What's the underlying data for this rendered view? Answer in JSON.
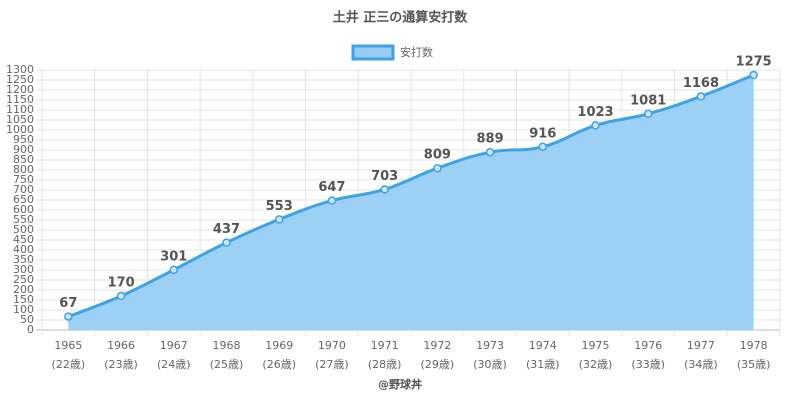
{
  "chart_data": {
    "type": "area",
    "title": "土井 正三の通算安打数",
    "categories": [
      "1965",
      "1966",
      "1967",
      "1968",
      "1969",
      "1970",
      "1971",
      "1972",
      "1973",
      "1974",
      "1975",
      "1976",
      "1977",
      "1978"
    ],
    "category_sublabels": [
      "(22歳)",
      "(23歳)",
      "(24歳)",
      "(25歳)",
      "(26歳)",
      "(27歳)",
      "(28歳)",
      "(29歳)",
      "(30歳)",
      "(31歳)",
      "(32歳)",
      "(33歳)",
      "(34歳)",
      "(35歳)"
    ],
    "series": [
      {
        "name": "安打数",
        "color": "#3ea2e5",
        "fill_color": "#97cdf4",
        "values": [
          67,
          170,
          301,
          437,
          553,
          647,
          703,
          809,
          889,
          916,
          1023,
          1081,
          1168,
          1275
        ]
      }
    ],
    "ylim": [
      0,
      1300
    ],
    "yticks": [
      0,
      50,
      100,
      150,
      200,
      250,
      300,
      350,
      400,
      450,
      500,
      550,
      600,
      650,
      700,
      750,
      800,
      850,
      900,
      950,
      1000,
      1050,
      1100,
      1150,
      1200,
      1250,
      1300
    ],
    "grid": true,
    "legend": "top",
    "footer": "@野球丼"
  }
}
